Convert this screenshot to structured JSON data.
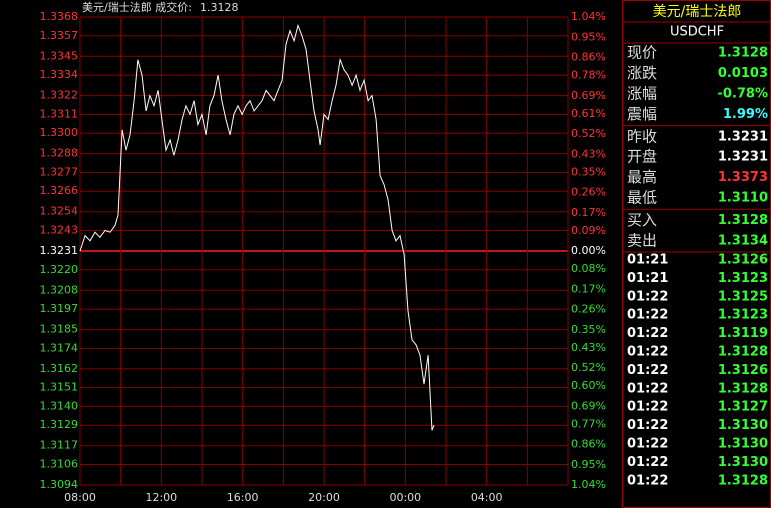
{
  "chart_data": {
    "type": "line",
    "title": "美元/瑞士法郎 成交价:",
    "subtitle": "1.3128",
    "x": [
      0,
      0.25,
      0.49,
      0.74,
      0.98,
      1.23,
      1.48,
      1.72,
      1.87,
      2.07,
      2.26,
      2.46,
      2.66,
      2.85,
      3.05,
      3.25,
      3.44,
      3.64,
      3.84,
      4.03,
      4.23,
      4.43,
      4.62,
      4.82,
      5.02,
      5.21,
      5.41,
      5.61,
      5.8,
      6.0,
      6.2,
      6.39,
      6.59,
      6.79,
      6.98,
      7.18,
      7.38,
      7.57,
      7.77,
      7.97,
      8.17,
      8.36,
      8.56,
      8.76,
      8.95,
      9.15,
      9.35,
      9.54,
      9.74,
      9.94,
      10.13,
      10.33,
      10.53,
      10.72,
      10.92,
      11.12,
      11.31,
      11.51,
      11.71,
      11.81,
      12.0,
      12.2,
      12.4,
      12.59,
      12.79,
      12.99,
      13.18,
      13.38,
      13.58,
      13.77,
      13.97,
      14.17,
      14.36,
      14.56,
      14.76,
      14.95,
      15.15,
      15.35,
      15.54,
      15.74,
      15.94,
      16.13,
      16.33,
      16.53,
      16.72,
      16.92,
      17.12,
      17.31,
      17.41
    ],
    "series": [
      {
        "color": "#ffffff",
        "values": [
          1.3231,
          1.324,
          1.3237,
          1.3242,
          1.3239,
          1.3243,
          1.3242,
          1.3246,
          1.3252,
          1.3302,
          1.329,
          1.3299,
          1.3319,
          1.3343,
          1.3334,
          1.3313,
          1.3322,
          1.3316,
          1.3325,
          1.3308,
          1.329,
          1.3296,
          1.3287,
          1.3296,
          1.3308,
          1.3316,
          1.3311,
          1.3319,
          1.3305,
          1.3311,
          1.3299,
          1.3316,
          1.3322,
          1.3334,
          1.3319,
          1.3308,
          1.3299,
          1.3311,
          1.3316,
          1.3311,
          1.3316,
          1.3319,
          1.3313,
          1.3316,
          1.3319,
          1.3325,
          1.3322,
          1.3319,
          1.3325,
          1.3331,
          1.3352,
          1.336,
          1.3354,
          1.3363,
          1.3357,
          1.3349,
          1.3331,
          1.3313,
          1.3302,
          1.3293,
          1.3311,
          1.3308,
          1.3319,
          1.3328,
          1.3343,
          1.3337,
          1.3334,
          1.3328,
          1.3334,
          1.3325,
          1.3331,
          1.3319,
          1.3322,
          1.3308,
          1.3275,
          1.327,
          1.3261,
          1.3243,
          1.3237,
          1.324,
          1.3229,
          1.3196,
          1.3179,
          1.3176,
          1.317,
          1.3153,
          1.317,
          1.3126,
          1.3129
        ]
      }
    ],
    "xlim": [
      0,
      24
    ],
    "xticks": [
      {
        "value": 0,
        "label": "08:00"
      },
      {
        "value": 2,
        "label": null
      },
      {
        "value": 4,
        "label": "12:00"
      },
      {
        "value": 6,
        "label": null
      },
      {
        "value": 8,
        "label": "16:00"
      },
      {
        "value": 10,
        "label": null
      },
      {
        "value": 12,
        "label": "20:00"
      },
      {
        "value": 14,
        "label": null
      },
      {
        "value": 16,
        "label": "00:00"
      },
      {
        "value": 18,
        "label": null
      },
      {
        "value": 20,
        "label": "04:00"
      },
      {
        "value": 22,
        "label": null
      },
      {
        "value": 24,
        "label": null
      }
    ],
    "ylim": [
      1.3094,
      1.3368
    ],
    "yticks": [
      1.3368,
      1.3357,
      1.3345,
      1.3334,
      1.3322,
      1.3311,
      {
        "value": 1.33,
        "label": "1.3300"
      },
      1.3288,
      1.3277,
      1.3266,
      1.3254,
      1.3243,
      1.3231,
      {
        "value": 1.322,
        "label": "1.3220"
      },
      1.3208,
      1.3197,
      1.3185,
      1.3174,
      1.3162,
      1.3151,
      {
        "value": 1.314,
        "label": "1.3140"
      },
      1.3129,
      1.3117,
      1.3106,
      1.3094
    ],
    "y2lim": [
      -1.04,
      1.04
    ],
    "y2ticks": [
      {
        "value": 1.04,
        "label": "1.04%"
      },
      {
        "value": 0.95,
        "label": "0.95%"
      },
      {
        "value": 0.86,
        "label": "0.86%"
      },
      {
        "value": 0.78,
        "label": "0.78%"
      },
      {
        "value": 0.69,
        "label": "0.69%"
      },
      {
        "value": 0.61,
        "label": "0.61%"
      },
      {
        "value": 0.52,
        "label": "0.52%"
      },
      {
        "value": 0.43,
        "label": "0.43%"
      },
      {
        "value": 0.35,
        "label": "0.35%"
      },
      {
        "value": 0.26,
        "label": "0.26%"
      },
      {
        "value": 0.17,
        "label": "0.17%"
      },
      {
        "value": 0.09,
        "label": "0.09%"
      },
      {
        "value": 0,
        "label": "0.00%"
      },
      {
        "value": -0.08,
        "label": "0.08%"
      },
      {
        "value": -0.17,
        "label": "0.17%"
      },
      {
        "value": -0.26,
        "label": "0.26%"
      },
      {
        "value": -0.35,
        "label": "0.35%"
      },
      {
        "value": -0.43,
        "label": "0.43%"
      },
      {
        "value": -0.52,
        "label": "0.52%"
      },
      {
        "value": -0.6,
        "label": "0.60%"
      },
      {
        "value": -0.69,
        "label": "0.69%"
      },
      {
        "value": -0.77,
        "label": "0.77%"
      },
      {
        "value": -0.86,
        "label": "0.86%"
      },
      {
        "value": -0.95,
        "label": "0.95%"
      },
      {
        "value": -1.04,
        "label": "1.04%"
      }
    ],
    "grid": true
  },
  "panel": {
    "title": "美元/瑞士法郎",
    "symbol": "USDCHF",
    "quotes": [
      [
        {
          "label": "现价",
          "value": "1.3128",
          "color": "#33ff33"
        },
        {
          "label": "涨跌",
          "value": "0.0103",
          "color": "#33ff33"
        },
        {
          "label": "涨幅",
          "value": "-0.78%",
          "color": "#33ff33"
        },
        {
          "label": "震幅",
          "value": "1.99%",
          "color": "#33ffff"
        }
      ],
      [
        {
          "label": "昨收",
          "value": "1.3231",
          "color": "#ffffff"
        },
        {
          "label": "开盘",
          "value": "1.3231",
          "color": "#ffffff"
        },
        {
          "label": "最高",
          "value": "1.3373",
          "color": "#ff3333"
        },
        {
          "label": "最低",
          "value": "1.3110",
          "color": "#33ff33"
        }
      ],
      [
        {
          "label": "买入",
          "value": "1.3128",
          "color": "#33ff33"
        },
        {
          "label": "卖出",
          "value": "1.3134",
          "color": "#33ff33"
        }
      ]
    ],
    "trades": [
      [
        "01:21",
        "1.3126"
      ],
      [
        "01:21",
        "1.3123"
      ],
      [
        "01:22",
        "1.3125"
      ],
      [
        "01:22",
        "1.3123"
      ],
      [
        "01:22",
        "1.3119"
      ],
      [
        "01:22",
        "1.3128"
      ],
      [
        "01:22",
        "1.3126"
      ],
      [
        "01:22",
        "1.3128"
      ],
      [
        "01:22",
        "1.3127"
      ],
      [
        "01:22",
        "1.3130"
      ],
      [
        "01:22",
        "1.3130"
      ],
      [
        "01:22",
        "1.3130"
      ],
      [
        "01:22",
        "1.3128"
      ]
    ]
  }
}
